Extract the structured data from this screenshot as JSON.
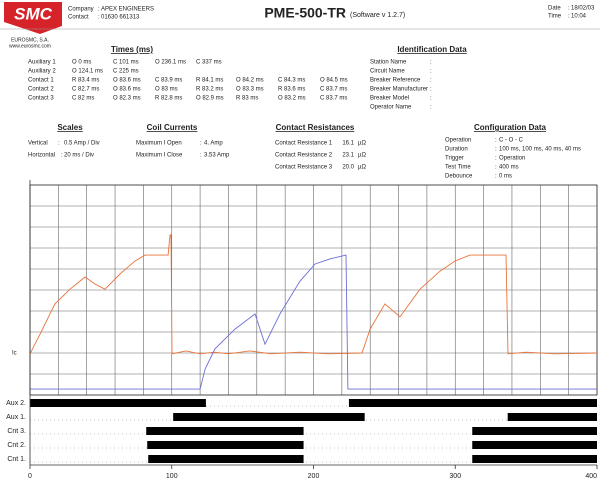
{
  "header": {
    "logo": "SMC",
    "logo_company": "EUROSMC, S.A.",
    "logo_web": "www.eurosmc.com",
    "company_label": "Company",
    "company": "APEX ENGINEERS",
    "contact_label": "Contact",
    "contact": "01630 661313",
    "title": "PME-500-TR",
    "subtitle": "(Software v 1.2.7)",
    "date_label": "Date",
    "date": "18/02/03",
    "time_label": "Time",
    "time": "10:04",
    "separator": ":"
  },
  "times": {
    "title": "Times (ms)",
    "rows": [
      {
        "label": "Auxiliary 1",
        "values": [
          "O 0 ms",
          "C 101 ms",
          "O 236.1 ms",
          "C 337 ms"
        ]
      },
      {
        "label": "Auxiliary 2",
        "values": [
          "O 124.1 ms",
          "C 225 ms"
        ]
      },
      {
        "label": "Contact 1",
        "values": [
          "R 83.4 ms",
          "O 83.6 ms",
          "C 83.9 ms",
          "R 84.1 ms",
          "O 84.2 ms",
          "C 84.3 ms",
          "O 84.5 ms"
        ]
      },
      {
        "label": "Contact 2",
        "values": [
          "C 82.7 ms",
          "O 83.6 ms",
          "O 83 ms",
          "R 83.2 ms",
          "O 83.3 ms",
          "R 83.6 ms",
          "C 83.7 ms"
        ]
      },
      {
        "label": "Contact 3",
        "values": [
          "C 82 ms",
          "O 82.3 ms",
          "R 82.8 ms",
          "O 82.9 ms",
          "R 83 ms",
          "O 83.2 ms",
          "C 83.7 ms"
        ]
      }
    ]
  },
  "identification": {
    "title": "Identification Data",
    "fields": [
      "Station Name",
      "Circuit Name",
      "Breaker Reference",
      "Breaker Manufacturer",
      "Breaker Model",
      "Operator Name"
    ]
  },
  "scales": {
    "title": "Scales",
    "rows": [
      {
        "label": "Vertical",
        "value": "0.5 Amp / Div"
      },
      {
        "label": "Horizontal",
        "value": "20 ms / Div"
      }
    ]
  },
  "coil_currents": {
    "title": "Coil Currents",
    "rows": [
      {
        "label": "Maximum I Open",
        "value": "4. Amp"
      },
      {
        "label": "Maximum I Close",
        "value": "3.53 Amp"
      }
    ]
  },
  "contact_resistances": {
    "title": "Contact Resistances",
    "unit": "µΩ",
    "rows": [
      {
        "label": "Contact Resistance 1",
        "value": "16.1"
      },
      {
        "label": "Contact Resistance 2",
        "value": "23.1"
      },
      {
        "label": "Contact Resistance 3",
        "value": "20.0"
      }
    ]
  },
  "configuration": {
    "title": "Configuration Data",
    "rows": [
      {
        "label": "Operation",
        "value": "C - O - C"
      },
      {
        "label": "Duration",
        "value": "100 ms, 100 ms, 40 ms, 40 ms"
      },
      {
        "label": "Trigger",
        "value": "Operation"
      },
      {
        "label": "Test Time",
        "value": "400 ms"
      },
      {
        "label": "Debounce",
        "value": "0 ms"
      }
    ]
  },
  "chart_data": [
    {
      "type": "line",
      "y_label": "Ic",
      "xlim": [
        0,
        400
      ],
      "xgrid": [
        0,
        20,
        40,
        60,
        80,
        100,
        120,
        140,
        160,
        180,
        200,
        220,
        240,
        260,
        280,
        300,
        320,
        340,
        360,
        380,
        400
      ],
      "ylim": [
        -1,
        4
      ],
      "ygrid": [
        -1,
        -0.5,
        0,
        0.5,
        1,
        1.5,
        2,
        2.5,
        3,
        3.5,
        4
      ],
      "grid": true,
      "series": [
        {
          "color": "#e8733a",
          "x": [
            0,
            7.1,
            17.6,
            28.2,
            38.8,
            45.9,
            52.9,
            63.5,
            74.1,
            81.1,
            97.4,
            98.8,
            99.5,
            100.2,
            110,
            120,
            130,
            140,
            155,
            170,
            190.5,
            210,
            234.2,
            239.9,
            250.4,
            261,
            275.1,
            289.3,
            299.8,
            310.4,
            335.8,
            337.2,
            350,
            370,
            400
          ],
          "values": [
            -0.02,
            0.45,
            1.17,
            1.52,
            1.81,
            1.64,
            1.52,
            1.88,
            2.19,
            2.33,
            2.33,
            2.81,
            2.81,
            -0.02,
            0.05,
            -0.02,
            0.02,
            -0.02,
            0.05,
            -0.02,
            0.02,
            -0.02,
            0,
            0.57,
            1.17,
            0.86,
            1.52,
            1.95,
            2.19,
            2.33,
            2.33,
            -0.02,
            0.02,
            -0.02,
            0
          ]
        },
        {
          "color": "#6b6fd6",
          "x": [
            0,
            120,
            123.5,
            130.5,
            144.6,
            158.7,
            165.8,
            176.4,
            190.5,
            201.1,
            211.6,
            222.9,
            224.3,
            400
          ],
          "values": [
            -0.86,
            -0.86,
            -0.38,
            0.1,
            0.57,
            0.93,
            0.21,
            0.93,
            1.71,
            2.12,
            2.24,
            2.33,
            -0.86,
            -0.86
          ]
        }
      ]
    },
    {
      "type": "timeline",
      "categories": [
        "Aux 2.",
        "Aux 1.",
        "Cnt 3.",
        "Cnt 2.",
        "Cnt 1."
      ],
      "color": "#000000",
      "xlim": [
        0,
        400
      ],
      "xticks": [
        0,
        100,
        200,
        300,
        400
      ],
      "segments": [
        [
          [
            0,
            124.1
          ],
          [
            225,
            400
          ]
        ],
        [
          [
            101,
            236.1
          ],
          [
            337,
            400
          ]
        ],
        [
          [
            82,
            193
          ],
          [
            312,
            400
          ]
        ],
        [
          [
            82.7,
            193
          ],
          [
            312,
            400
          ]
        ],
        [
          [
            83.4,
            193
          ],
          [
            312,
            400
          ]
        ]
      ]
    }
  ]
}
